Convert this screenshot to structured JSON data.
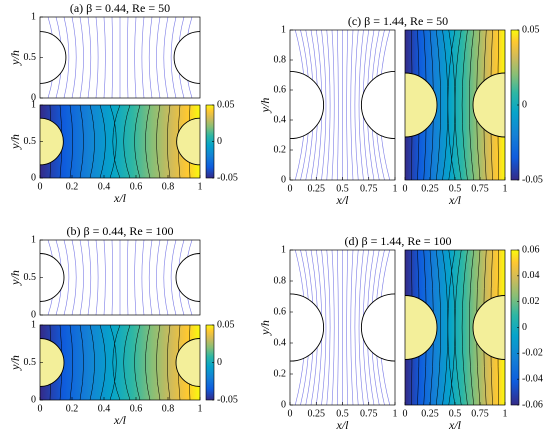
{
  "chart_data": [
    {
      "type": "streamline",
      "title": "(a) β = 0.44,  Re = 50",
      "ylabel": "y/h",
      "xlim": [
        0,
        1
      ],
      "ylim": [
        0,
        1
      ],
      "yticks": [
        0,
        0.5,
        1
      ]
    },
    {
      "type": "contour",
      "ylabel": "y/h",
      "xlabel": "x/l",
      "xlim": [
        0,
        1
      ],
      "ylim": [
        0,
        1
      ],
      "xticks": [
        0,
        0.2,
        0.4,
        0.6,
        0.8,
        1
      ],
      "yticks": [
        0,
        0.5,
        1
      ],
      "clim": [
        -0.05,
        0.05
      ],
      "cticks": [
        -0.05,
        0,
        0.05
      ]
    },
    {
      "type": "streamline",
      "title": "(b) β = 0.44,  Re = 100",
      "ylabel": "y/h",
      "xlim": [
        0,
        1
      ],
      "ylim": [
        0,
        1
      ],
      "yticks": [
        0,
        0.5,
        1
      ]
    },
    {
      "type": "contour",
      "ylabel": "y/h",
      "xlabel": "x/l",
      "xlim": [
        0,
        1
      ],
      "ylim": [
        0,
        1
      ],
      "xticks": [
        0,
        0.2,
        0.4,
        0.6,
        0.8,
        1
      ],
      "yticks": [
        0,
        0.5,
        1
      ],
      "clim": [
        -0.05,
        0.05
      ],
      "cticks": [
        -0.05,
        0,
        0.05
      ]
    },
    {
      "type": "streamline",
      "title": "(c) β = 1.44,  Re = 50",
      "ylabel": "y/h",
      "xlabel": "x/l",
      "xlim": [
        0,
        1
      ],
      "ylim": [
        0,
        1
      ],
      "xticks": [
        0,
        0.25,
        0.5,
        0.75,
        1
      ],
      "yticks": [
        0,
        0.2,
        0.4,
        0.6,
        0.8,
        1
      ]
    },
    {
      "type": "contour",
      "xlabel": "x/l",
      "xlim": [
        0,
        1
      ],
      "ylim": [
        0,
        1
      ],
      "xticks": [
        0,
        0.25,
        0.5,
        0.75,
        1
      ],
      "clim": [
        -0.05,
        0.05
      ],
      "cticks": [
        -0.05,
        0,
        0.05
      ]
    },
    {
      "type": "streamline",
      "title": "(d) β = 1.44,  Re = 100",
      "ylabel": "y/h",
      "xlabel": "x/l",
      "xlim": [
        0,
        1
      ],
      "ylim": [
        0,
        1
      ],
      "xticks": [
        0,
        0.25,
        0.5,
        0.75,
        1
      ],
      "yticks": [
        0,
        0.2,
        0.4,
        0.6,
        0.8,
        1
      ]
    },
    {
      "type": "contour",
      "xlabel": "x/l",
      "xlim": [
        0,
        1
      ],
      "ylim": [
        0,
        1
      ],
      "xticks": [
        0,
        0.25,
        0.5,
        0.75,
        1
      ],
      "clim": [
        -0.06,
        0.06
      ],
      "cticks": [
        -0.06,
        -0.04,
        -0.02,
        0,
        0.02,
        0.04,
        0.06
      ]
    }
  ]
}
